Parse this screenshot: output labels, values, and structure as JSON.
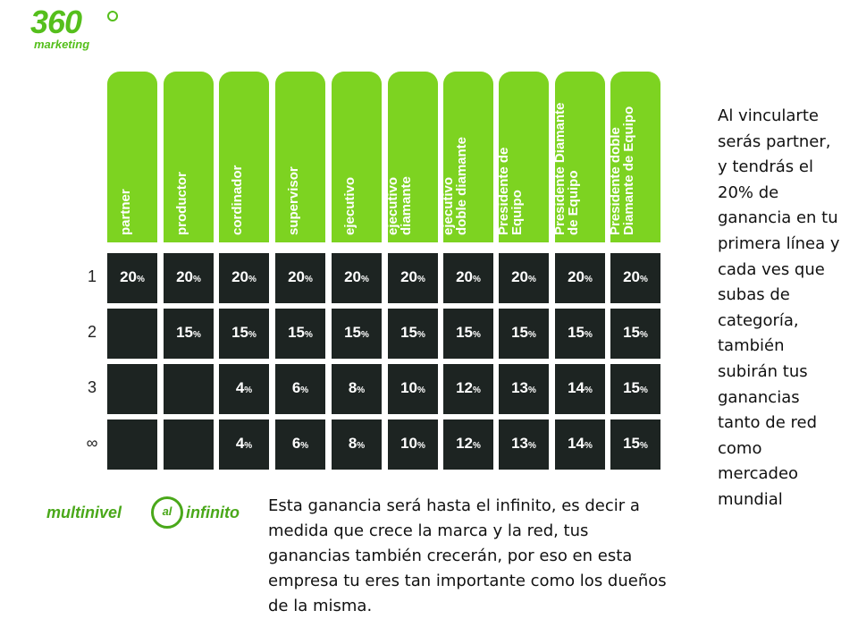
{
  "logo_top": {
    "number": "360",
    "sub": "marketing"
  },
  "columns": [
    "partner",
    "productor",
    "cordinador",
    "supervisor",
    "ejecutivo",
    "ejecutivo\ndiamante",
    "ejecutivo\ndoble diamante",
    "Presidente de\nEquipo",
    "Presidente Diamante\nde Equipo",
    "Presidente doble\nDiamante de Equipo"
  ],
  "rows": [
    {
      "label": "1",
      "values": [
        "20",
        "20",
        "20",
        "20",
        "20",
        "20",
        "20",
        "20",
        "20",
        "20"
      ]
    },
    {
      "label": "2",
      "values": [
        "",
        "15",
        "15",
        "15",
        "15",
        "15",
        "15",
        "15",
        "15",
        "15"
      ]
    },
    {
      "label": "3",
      "values": [
        "",
        "",
        "4",
        "6",
        "8",
        "10",
        "12",
        "13",
        "14",
        "15"
      ]
    },
    {
      "label": "∞",
      "values": [
        "",
        "",
        "4",
        "6",
        "8",
        "10",
        "12",
        "13",
        "14",
        "15"
      ]
    }
  ],
  "percent_sign": "%",
  "logo_bottom": {
    "left": "multinivel",
    "circle": "al",
    "right": "infinito"
  },
  "bottom_text": "Esta ganancia será hasta el infinito, es decir a medida que crece la marca y la red, tus ganancias también crecerán, por eso en esta empresa tu eres tan importante como los dueños de la misma.",
  "side_text": "Al vincularte serás partner, y tendrás el 20% de ganancia en tu primera línea y cada ves que subas de categoría, también subirán tus ganancias tanto de red como mercadeo mundial",
  "colors": {
    "green": "#7dd321",
    "dark_cell": "#1d2422",
    "logo_green": "#55bf1c"
  }
}
